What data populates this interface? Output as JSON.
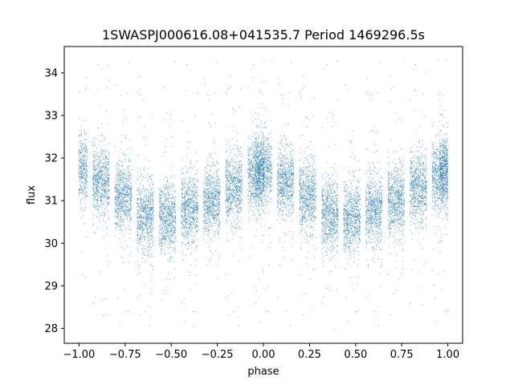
{
  "chart_data": {
    "type": "scatter",
    "title": "1SWASPJ000616.08+041535.7 Period 1469296.5s",
    "xlabel": "phase",
    "ylabel": "flux",
    "xlim": [
      -1.08,
      1.08
    ],
    "ylim": [
      27.65,
      34.62
    ],
    "xticks": [
      -1.0,
      -0.75,
      -0.5,
      -0.25,
      0.0,
      0.25,
      0.5,
      0.75,
      1.0
    ],
    "xtick_labels": [
      "−1.00",
      "−0.75",
      "−0.50",
      "−0.25",
      "0.00",
      "0.25",
      "0.50",
      "0.75",
      "1.00"
    ],
    "yticks": [
      28,
      29,
      30,
      31,
      32,
      33,
      34
    ],
    "ytick_labels": [
      "28",
      "29",
      "30",
      "31",
      "32",
      "33",
      "34"
    ],
    "grid": false,
    "legend": null,
    "point_color": "#1f77b4",
    "series": [
      {
        "x": [
          -1.0,
          -0.88,
          -0.76,
          -0.64,
          -0.52,
          -0.4,
          -0.28,
          -0.16,
          -0.04,
          0.0,
          0.12,
          0.24,
          0.36,
          0.48,
          0.6,
          0.72,
          0.84,
          0.96,
          1.0
        ],
        "y": [
          31.75,
          31.45,
          31.1,
          30.65,
          30.6,
          30.8,
          31.0,
          31.3,
          31.6,
          31.75,
          31.45,
          31.1,
          30.65,
          30.6,
          30.8,
          31.0,
          31.3,
          31.6,
          31.75
        ],
        "x_spread": 0.045,
        "y_core_std": 0.4,
        "y_outlier_range": [
          28.0,
          34.3
        ],
        "points_per_cluster_approx": 700
      }
    ]
  }
}
